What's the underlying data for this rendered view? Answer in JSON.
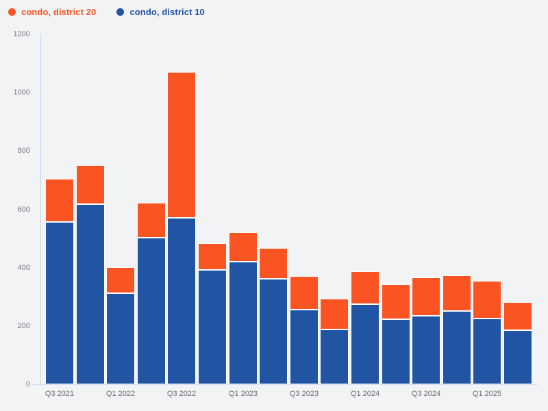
{
  "page": {
    "background": "#f2f3f5"
  },
  "legend": {
    "items": [
      {
        "label": "condo, district 20",
        "color": "#fa5423"
      },
      {
        "label": "condo, district 10",
        "color": "#2154a3"
      }
    ]
  },
  "chart_data": {
    "type": "bar",
    "stacked": true,
    "title": "",
    "xlabel": "",
    "ylabel": "",
    "categories": [
      "Q3 2021",
      "Q4 2021",
      "Q1 2022",
      "Q2 2022",
      "Q3 2022",
      "Q4 2022",
      "Q1 2023",
      "Q2 2023",
      "Q3 2023",
      "Q4 2023",
      "Q1 2024",
      "Q2 2024",
      "Q3 2024",
      "Q4 2024",
      "Q1 2025",
      "Q2 2025"
    ],
    "series": [
      {
        "name": "condo, district 20",
        "color": "#fa5423",
        "values": [
          149,
          134,
          89,
          120,
          500,
          92,
          100,
          105,
          116,
          106,
          113,
          120,
          131,
          121,
          130,
          96
        ]
      },
      {
        "name": "condo, district 10",
        "color": "#2154a3",
        "values": [
          556,
          618,
          313,
          503,
          570,
          391,
          421,
          362,
          257,
          188,
          275,
          223,
          235,
          251,
          225,
          186
        ]
      }
    ],
    "stack_bottom_to_top": [
      "condo, district 10",
      "condo, district 20"
    ],
    "ylim": [
      0,
      1200
    ],
    "y_ticks": [
      0,
      200,
      400,
      600,
      800,
      1000,
      1200
    ],
    "x_tick_labels": [
      "Q3 2021",
      "Q1 2022",
      "Q3 2022",
      "Q1 2023",
      "Q3 2023",
      "Q1 2024",
      "Q3 2024",
      "Q1 2025"
    ],
    "x_tick_every_n_bars": 2,
    "grid": false,
    "legend_position": "top-left"
  }
}
